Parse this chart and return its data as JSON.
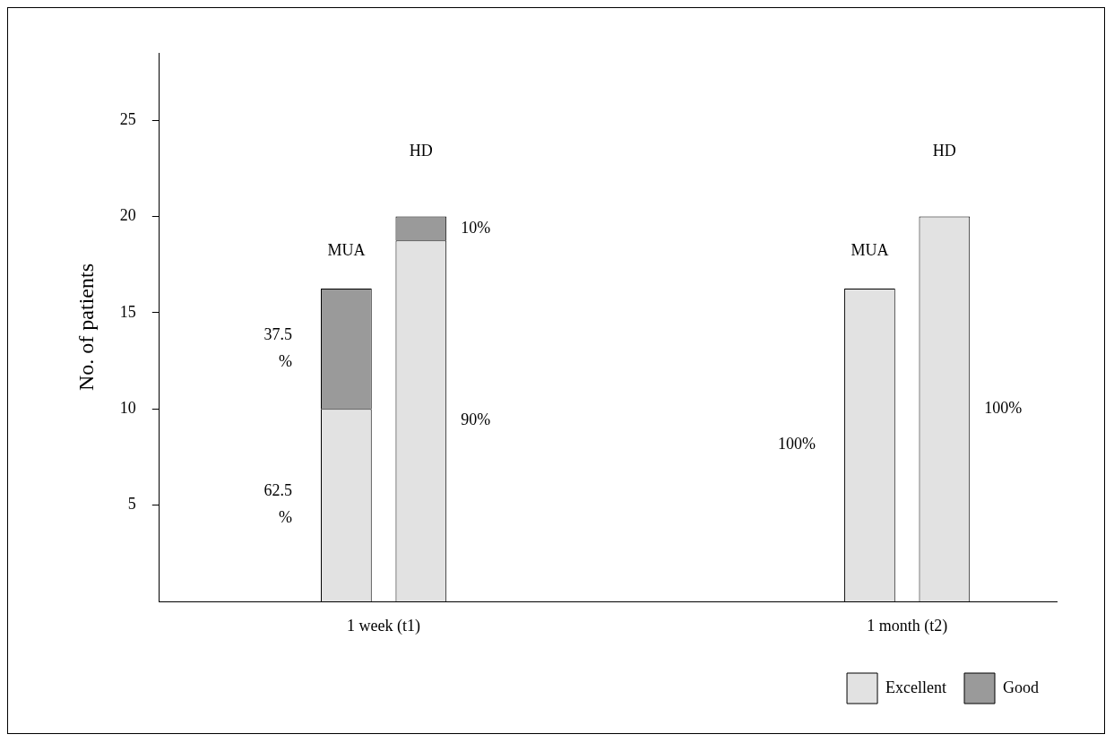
{
  "chart_data": {
    "type": "bar",
    "stacked": true,
    "ylabel": "No. of patients",
    "categories": [
      null,
      null,
      null,
      null,
      null,
      null,
      null,
      null,
      null,
      null,
      null,
      null
    ],
    "series": [
      {
        "name": "Excellent",
        "color": "#e2e2e2",
        "values": [
          null,
          null,
          10,
          18.75,
          null,
          null,
          null,
          null,
          null,
          16.25,
          20,
          null
        ]
      },
      {
        "name": "Good",
        "color": "#9a9a9a",
        "values": [
          null,
          null,
          6.25,
          1.25,
          null,
          null,
          null,
          null,
          null,
          0,
          0,
          null
        ]
      }
    ],
    "annotations": [
      "1 week (t1)",
      "MUA",
      "62.5 %",
      "37.5 %",
      "HD",
      "90%",
      "10%",
      "1 month (t2)",
      "MUA",
      "100%",
      "HD",
      "100%"
    ],
    "ylim": [
      0,
      28.5
    ],
    "yticks": [
      5,
      10,
      15,
      20,
      25
    ],
    "grid": false,
    "legend": "bottom right"
  }
}
